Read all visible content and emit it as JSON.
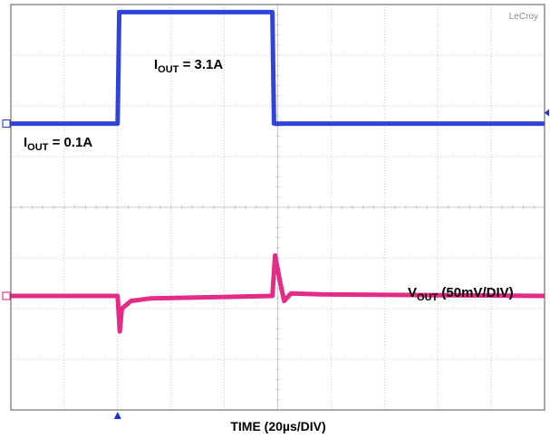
{
  "brand": "LeCroy",
  "colors": {
    "grid": "#c8c8c8",
    "frame": "#555555",
    "current_trace": "#1a2fd6",
    "voltage_trace": "#e0147a",
    "marker": "#1a2fd6"
  },
  "labels": {
    "iout_low": {
      "main": "I",
      "sub": "OUT",
      "rest": " = 0.1A"
    },
    "iout_high": {
      "main": "I",
      "sub": "OUT",
      "rest": " = 3.1A"
    },
    "vout": {
      "main": "V",
      "sub": "OUT",
      "rest": " (50mV/DIV)"
    },
    "time": "TIME (20µs/DIV)"
  },
  "chart_data": {
    "type": "line",
    "title": "",
    "xlabel": "TIME (20µs/DIV)",
    "ylabel": "",
    "grid": true,
    "x_divisions": 10,
    "y_divisions": 8,
    "xlim": [
      0,
      10
    ],
    "ylim": [
      0,
      8
    ],
    "x_unit": "div",
    "y_unit": "div",
    "series": [
      {
        "name": "IOUT",
        "points": [
          [
            0,
            5.65
          ],
          [
            2.0,
            5.65
          ],
          [
            2.03,
            7.85
          ],
          [
            4.9,
            7.85
          ],
          [
            4.93,
            5.65
          ],
          [
            10,
            5.65
          ]
        ]
      },
      {
        "name": "VOUT",
        "points": [
          [
            0,
            2.25
          ],
          [
            2.0,
            2.25
          ],
          [
            2.04,
            1.55
          ],
          [
            2.08,
            2.0
          ],
          [
            2.25,
            2.15
          ],
          [
            2.6,
            2.2
          ],
          [
            4.9,
            2.25
          ],
          [
            4.95,
            3.05
          ],
          [
            5.05,
            2.5
          ],
          [
            5.12,
            2.15
          ],
          [
            5.25,
            2.3
          ],
          [
            5.8,
            2.28
          ],
          [
            10,
            2.25
          ]
        ]
      }
    ]
  }
}
